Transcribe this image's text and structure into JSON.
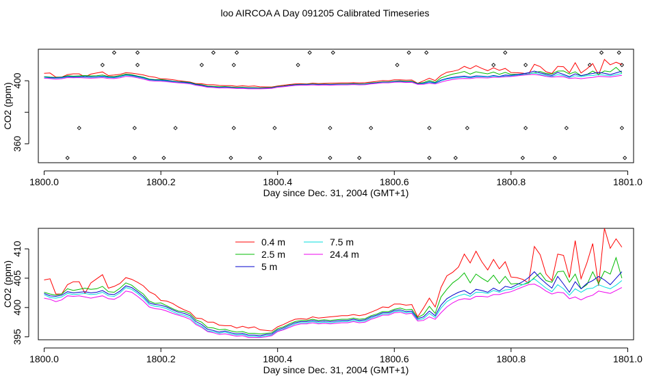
{
  "title": "loo AIRCOA A  Day 091205  Calibrated Timeseries",
  "chart_data": [
    {
      "type": "scatter+line",
      "ylabel": "CO2 (ppm)",
      "xlabel": "Day since Dec. 31, 2004 (GMT+1)",
      "xlim": [
        1799.99,
        1801.01
      ],
      "ylim": [
        348,
        420
      ],
      "xticks": [
        "1800.0",
        "1800.2",
        "1800.4",
        "1800.6",
        "1800.8",
        "1801.0"
      ],
      "yticks": [
        "360",
        "380",
        "400"
      ],
      "tick_values_x": [
        1800.0,
        1800.2,
        1800.4,
        1800.6,
        1800.8,
        1801.0
      ],
      "tick_values_y": [
        360,
        380,
        400
      ],
      "ytick_labels_shown": [
        "360",
        "400"
      ],
      "grid": false,
      "calibration_points": {
        "x": [
          1800.04,
          1800.06,
          1800.1,
          1800.12,
          1800.155,
          1800.155,
          1800.16,
          1800.16,
          1800.205,
          1800.225,
          1800.27,
          1800.29,
          1800.32,
          1800.325,
          1800.325,
          1800.33,
          1800.37,
          1800.395,
          1800.435,
          1800.455,
          1800.49,
          1800.49,
          1800.495,
          1800.54,
          1800.56,
          1800.605,
          1800.625,
          1800.655,
          1800.66,
          1800.66,
          1800.705,
          1800.725,
          1800.77,
          1800.79,
          1800.82,
          1800.825,
          1800.825,
          1800.875,
          1800.895,
          1800.935,
          1800.955,
          1800.985,
          1800.99,
          1800.99,
          1800.995
        ],
        "y": [
          350,
          370,
          410,
          430,
          350,
          370,
          410,
          430,
          350,
          370,
          410,
          430,
          350,
          370,
          410,
          430,
          350,
          370,
          410,
          430,
          350,
          370,
          430,
          350,
          370,
          410,
          430,
          430,
          370,
          350,
          350,
          370,
          410,
          430,
          350,
          370,
          410,
          350,
          370,
          410,
          430,
          430,
          370,
          410,
          350
        ]
      }
    },
    {
      "type": "line",
      "ylabel": "CO2 (ppm)",
      "xlabel": "Day since Dec. 31, 2004 (GMT+1)",
      "xlim": [
        1799.99,
        1801.01
      ],
      "ylim": [
        394.5,
        413.5
      ],
      "xticks": [
        "1800.0",
        "1800.2",
        "1800.4",
        "1800.6",
        "1800.8",
        "1801.0"
      ],
      "yticks": [
        "395",
        "400",
        "405",
        "410"
      ],
      "tick_values_x": [
        1800.0,
        1800.2,
        1800.4,
        1800.6,
        1800.8,
        1801.0
      ],
      "tick_values_y": [
        395,
        400,
        405,
        410
      ],
      "grid": false,
      "legend_position": "top-center",
      "x_start": 1800.0,
      "x_step": 0.01,
      "series": [
        {
          "name": "0.4 m",
          "color": "#ff0000",
          "values": [
            404.7,
            404.9,
            402.3,
            402.3,
            403.9,
            404.4,
            404.4,
            402.4,
            404.2,
            404.9,
            405.6,
            403.3,
            403.6,
            404.1,
            405.1,
            404.8,
            404.3,
            403.7,
            402.7,
            402.2,
            401.2,
            401.1,
            400.7,
            400.1,
            399.6,
            399.2,
            398.2,
            398.1,
            397.5,
            397.5,
            397.0,
            396.9,
            396.9,
            396.5,
            396.8,
            396.5,
            396.7,
            396.2,
            396.1,
            396.0,
            396.7,
            397.1,
            397.6,
            398.0,
            398.1,
            398.0,
            398.4,
            398.2,
            398.3,
            398.4,
            398.5,
            398.6,
            398.6,
            398.8,
            398.6,
            398.8,
            399.2,
            399.6,
            400.1,
            400.0,
            400.6,
            400.6,
            400.4,
            400.5,
            398.4,
            399.9,
            401.6,
            400.1,
            403.4,
            405.4,
            406.0,
            406.9,
            409.1,
            407.6,
            409.6,
            407.8,
            406.4,
            408.2,
            406.6,
            407.8,
            405.2,
            405.1,
            404.8,
            404.2,
            410.4,
            409.0,
            405.7,
            404.6,
            409.1,
            408.9,
            405.1,
            411.4,
            404.9,
            407.6,
            410.9,
            403.7,
            413.5,
            410.1,
            411.7,
            410.3
          ]
        },
        {
          "name": "2.5 m",
          "color": "#00bb00",
          "values": [
            402.6,
            402.3,
            402.1,
            402.3,
            403.2,
            402.9,
            403.1,
            403.3,
            403.1,
            403.2,
            403.6,
            402.7,
            402.6,
            403.3,
            404.2,
            403.8,
            403.0,
            402.3,
            401.1,
            400.7,
            400.8,
            400.3,
            399.8,
            399.4,
            399.3,
            398.9,
            397.9,
            397.5,
            396.6,
            396.5,
            396.2,
            396.3,
            396.0,
            395.8,
            395.9,
            395.6,
            395.6,
            395.5,
            395.6,
            395.7,
            396.4,
            396.7,
            397.2,
            397.6,
            397.8,
            397.8,
            398.0,
            397.8,
            397.9,
            397.8,
            397.9,
            398.0,
            398.0,
            398.2,
            398.0,
            398.1,
            398.6,
            398.9,
            399.3,
            399.3,
            399.7,
            399.9,
            399.6,
            399.7,
            398.3,
            398.8,
            400.2,
            399.0,
            401.8,
            403.1,
            404.2,
            404.9,
            405.9,
            404.2,
            405.7,
            405.0,
            404.4,
            405.5,
            404.1,
            405.3,
            404.0,
            404.1,
            403.9,
            404.2,
            405.1,
            405.9,
            404.6,
            404.3,
            406.1,
            406.2,
            404.3,
            405.7,
            403.2,
            403.9,
            406.1,
            404.1,
            406.2,
            405.7,
            408.5,
            405.0
          ]
        },
        {
          "name": "5 m",
          "color": "#0000cc",
          "values": [
            402.4,
            402.0,
            401.9,
            402.1,
            402.7,
            402.5,
            402.6,
            402.7,
            402.5,
            402.6,
            402.9,
            402.3,
            402.2,
            402.8,
            403.7,
            403.4,
            402.7,
            401.9,
            400.8,
            400.5,
            400.4,
            400.1,
            399.6,
            399.2,
            399.0,
            398.6,
            397.6,
            397.1,
            396.3,
            396.1,
            395.8,
            396.0,
            395.7,
            395.5,
            395.6,
            395.3,
            395.3,
            395.2,
            395.4,
            395.5,
            396.2,
            396.5,
            397.0,
            397.4,
            397.6,
            397.6,
            397.8,
            397.6,
            397.7,
            397.6,
            397.7,
            397.8,
            397.8,
            398.0,
            397.8,
            397.9,
            398.4,
            398.7,
            399.1,
            399.1,
            399.5,
            399.6,
            399.3,
            399.4,
            398.1,
            398.4,
            399.4,
            398.6,
            400.4,
            401.5,
            402.1,
            402.6,
            402.9,
            402.3,
            403.1,
            402.9,
            402.6,
            403.3,
            402.8,
            403.6,
            403.4,
            403.9,
            404.4,
            405.1,
            406.1,
            405.0,
            404.1,
            403.3,
            405.3,
            404.0,
            402.6,
            404.4,
            403.2,
            404.1,
            404.6,
            405.3,
            404.7,
            403.9,
            405.0,
            406.1
          ]
        },
        {
          "name": "7.5 m",
          "color": "#00dddd",
          "values": [
            402.2,
            401.7,
            401.6,
            401.8,
            402.4,
            402.2,
            402.3,
            402.4,
            402.2,
            402.3,
            402.6,
            402.0,
            401.9,
            402.5,
            403.4,
            403.1,
            402.4,
            401.6,
            400.5,
            400.2,
            400.1,
            399.8,
            399.3,
            398.9,
            398.7,
            398.3,
            397.3,
            396.8,
            396.0,
            395.9,
            395.6,
            395.8,
            395.5,
            395.3,
            395.4,
            395.1,
            395.1,
            395.0,
            395.2,
            395.3,
            396.0,
            396.3,
            396.8,
            397.2,
            397.4,
            397.4,
            397.6,
            397.4,
            397.5,
            397.4,
            397.5,
            397.6,
            397.6,
            397.8,
            397.6,
            397.7,
            398.2,
            398.5,
            398.9,
            398.9,
            399.3,
            399.4,
            399.1,
            399.2,
            397.9,
            398.1,
            399.0,
            398.3,
            399.9,
            401.0,
            401.6,
            402.0,
            402.3,
            401.9,
            402.6,
            402.6,
            402.4,
            402.9,
            402.6,
            403.0,
            403.1,
            403.5,
            403.9,
            404.4,
            404.9,
            404.1,
            403.3,
            402.7,
            403.9,
            403.2,
            402.1,
            403.2,
            402.6,
            403.2,
            403.3,
            403.9,
            403.5,
            403.2,
            403.8,
            404.6
          ]
        },
        {
          "name": "24.4 m",
          "color": "#ee00ee",
          "values": [
            401.6,
            401.4,
            401.0,
            401.3,
            402.0,
            401.9,
            402.0,
            401.8,
            401.6,
            401.8,
            402.0,
            401.5,
            401.4,
            401.9,
            402.8,
            402.6,
            401.9,
            401.1,
            400.1,
            399.8,
            399.7,
            399.4,
            399.0,
            398.7,
            398.4,
            398.0,
            397.1,
            396.6,
            395.9,
            395.7,
            395.4,
            395.5,
            395.3,
            395.1,
            395.2,
            394.9,
            394.9,
            394.9,
            395.0,
            395.2,
            395.9,
            396.2,
            396.6,
            397.0,
            397.2,
            397.2,
            397.4,
            397.2,
            397.3,
            397.2,
            397.3,
            397.4,
            397.4,
            397.6,
            397.4,
            397.5,
            398.0,
            398.3,
            398.7,
            398.7,
            399.1,
            399.2,
            398.9,
            399.0,
            397.7,
            397.8,
            398.4,
            398.0,
            399.1,
            400.1,
            400.8,
            401.3,
            401.5,
            401.4,
            401.9,
            401.9,
            401.8,
            402.2,
            402.2,
            402.5,
            402.7,
            403.1,
            403.5,
            403.9,
            404.0,
            403.5,
            402.8,
            402.3,
            402.6,
            402.5,
            401.5,
            401.8,
            401.3,
            401.8,
            402.1,
            402.8,
            402.6,
            402.4,
            402.9,
            403.4
          ]
        }
      ]
    }
  ]
}
